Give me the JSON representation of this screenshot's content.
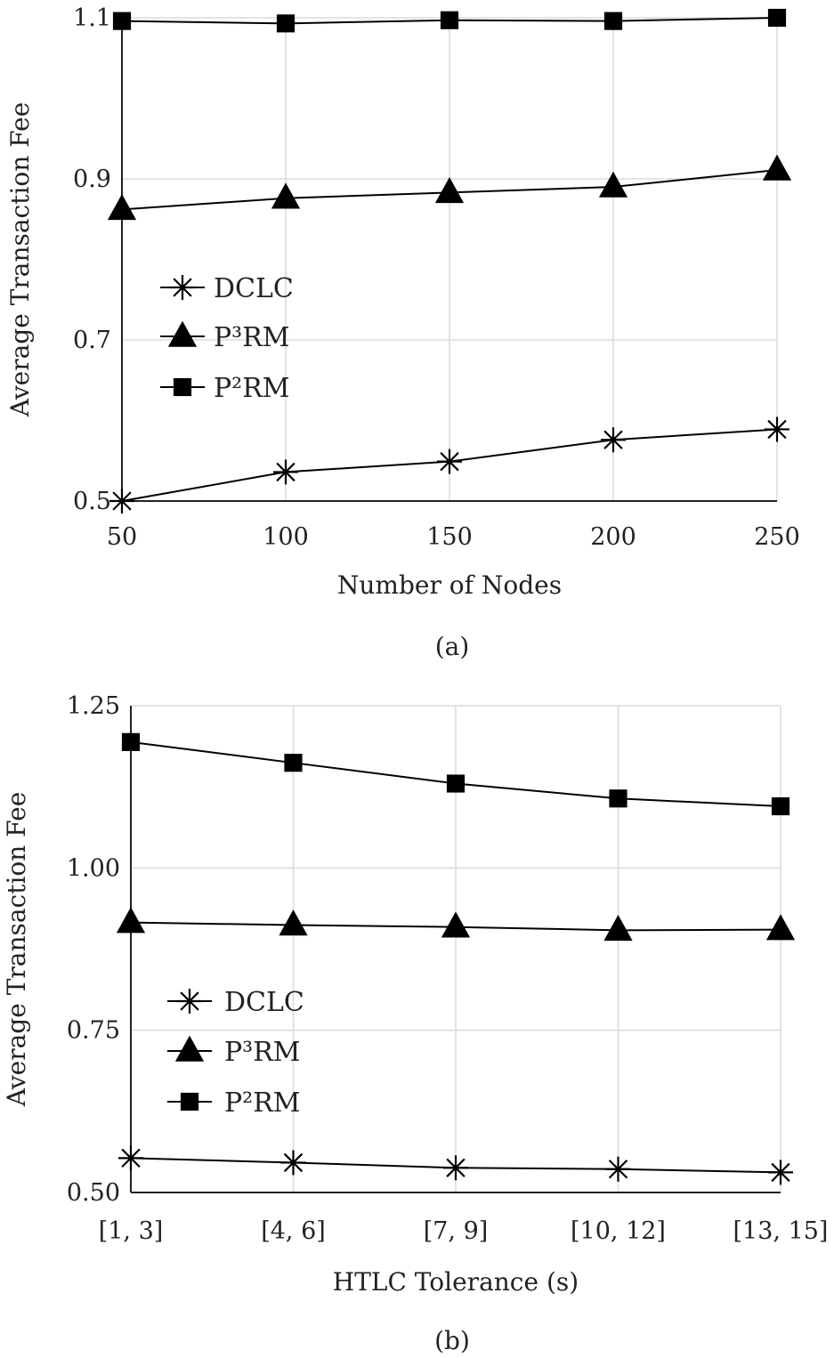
{
  "chart_data": [
    {
      "type": "line",
      "caption": "(a)",
      "xlabel": "Number of Nodes",
      "ylabel": "Average Transaction Fee",
      "x": [
        50,
        100,
        150,
        200,
        250
      ],
      "x_tick_labels": [
        "50",
        "100",
        "150",
        "200",
        "250"
      ],
      "xlim": [
        50,
        250
      ],
      "ylim": [
        0.5,
        1.1
      ],
      "y_ticks": [
        0.5,
        0.7,
        0.9,
        1.1
      ],
      "y_tick_labels": [
        "0.5",
        "0.7",
        "0.9",
        "1.1"
      ],
      "grid": true,
      "legend_position": "left",
      "series": [
        {
          "name": "DCLC",
          "marker": "asterisk",
          "values": [
            0.5,
            0.536,
            0.549,
            0.576,
            0.589
          ]
        },
        {
          "name": "P³RM",
          "marker": "triangle",
          "values": [
            0.862,
            0.876,
            0.883,
            0.89,
            0.911
          ]
        },
        {
          "name": "P²RM",
          "marker": "square",
          "values": [
            1.096,
            1.093,
            1.097,
            1.096,
            1.1
          ]
        }
      ]
    },
    {
      "type": "line",
      "caption": "(b)",
      "xlabel": "HTLC Tolerance (s)",
      "ylabel": "Average Transaction Fee",
      "categories": [
        "[1, 3]",
        "[4, 6]",
        "[7, 9]",
        "[10, 12]",
        "[13, 15]"
      ],
      "ylim": [
        0.5,
        1.25
      ],
      "y_ticks": [
        0.5,
        0.75,
        1.0,
        1.25
      ],
      "y_tick_labels": [
        "0.50",
        "0.75",
        "1.00",
        "1.25"
      ],
      "grid": true,
      "legend_position": "left",
      "series": [
        {
          "name": "DCLC",
          "marker": "asterisk",
          "values": [
            0.553,
            0.546,
            0.538,
            0.536,
            0.531
          ]
        },
        {
          "name": "P³RM",
          "marker": "triangle",
          "values": [
            0.916,
            0.912,
            0.909,
            0.904,
            0.905
          ]
        },
        {
          "name": "P²RM",
          "marker": "square",
          "values": [
            1.194,
            1.162,
            1.13,
            1.107,
            1.095
          ]
        }
      ]
    }
  ]
}
